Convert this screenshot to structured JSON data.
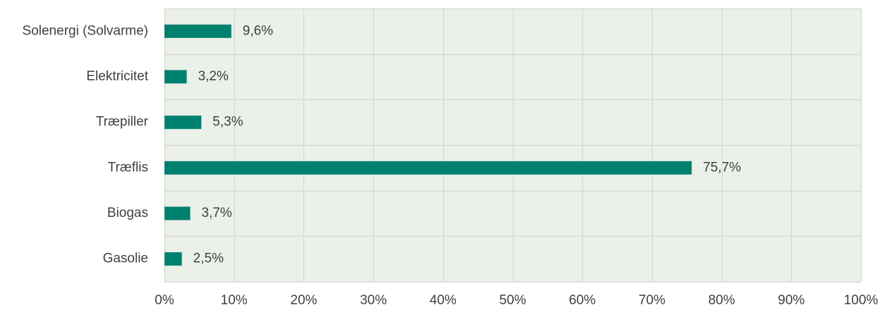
{
  "chart_data": {
    "type": "bar",
    "orientation": "horizontal",
    "categories": [
      "Solenergi (Solvarme)",
      "Elektricitet",
      "Træpiller",
      "Træflis",
      "Biogas",
      "Gasolie"
    ],
    "values": [
      9.6,
      3.2,
      5.3,
      75.7,
      3.7,
      2.5
    ],
    "data_labels": [
      "9,6%",
      "3,2%",
      "5,3%",
      "75,7%",
      "3,7%",
      "2,5%"
    ],
    "x_ticks": [
      0,
      10,
      20,
      30,
      40,
      50,
      60,
      70,
      80,
      90,
      100
    ],
    "x_tick_labels": [
      "0%",
      "10%",
      "20%",
      "30%",
      "40%",
      "50%",
      "60%",
      "70%",
      "80%",
      "90%",
      "100%"
    ],
    "xlim": [
      0,
      100
    ],
    "unit": "%",
    "title": "",
    "xlabel": "",
    "ylabel": "",
    "grid": true,
    "legend": "none",
    "colors": {
      "bar": "#00806f",
      "plot_background": "#ebf0e8",
      "grid": "#d4d8d1",
      "text": "#404040"
    }
  }
}
